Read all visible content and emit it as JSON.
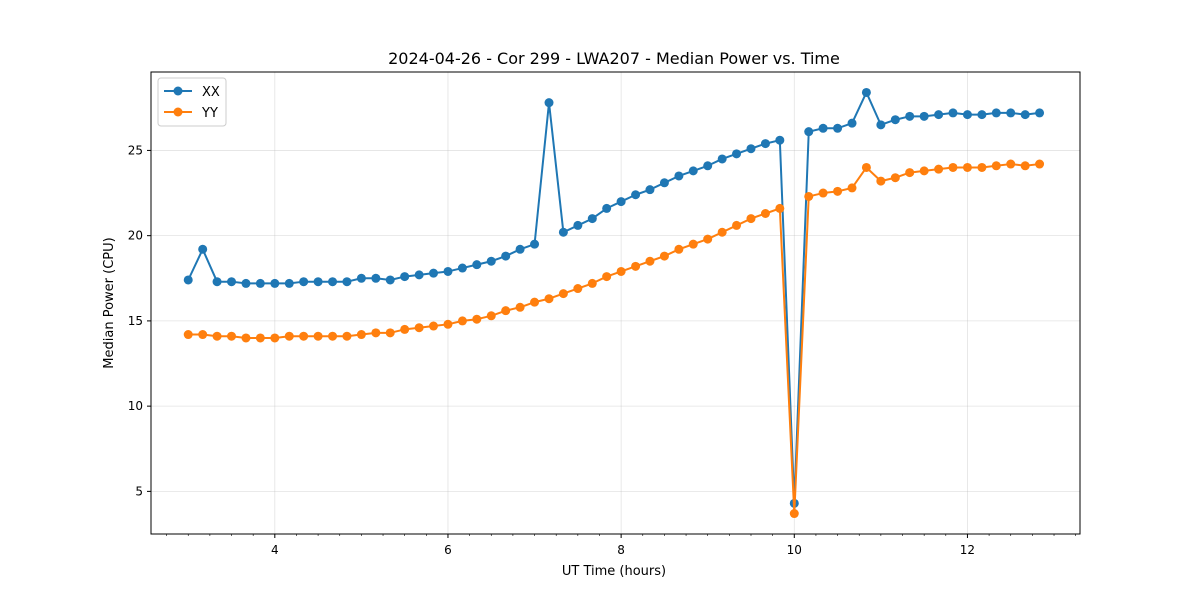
{
  "chart_data": {
    "type": "line",
    "title": "2024-04-26 - Cor 299 - LWA207 - Median Power vs. Time",
    "xlabel": "UT Time (hours)",
    "ylabel": "Median Power (CPU)",
    "xlim": [
      2.57,
      13.3
    ],
    "ylim": [
      2.5,
      29.6
    ],
    "xticks": [
      4,
      6,
      8,
      10,
      12
    ],
    "yticks": [
      5,
      10,
      15,
      20,
      25
    ],
    "x_minor_step": 0.25,
    "grid": true,
    "legend_position": "top-left",
    "x": [
      3.0,
      3.167,
      3.333,
      3.5,
      3.667,
      3.833,
      4.0,
      4.167,
      4.333,
      4.5,
      4.667,
      4.833,
      5.0,
      5.167,
      5.333,
      5.5,
      5.667,
      5.833,
      6.0,
      6.167,
      6.333,
      6.5,
      6.667,
      6.833,
      7.0,
      7.167,
      7.333,
      7.5,
      7.667,
      7.833,
      8.0,
      8.167,
      8.333,
      8.5,
      8.667,
      8.833,
      9.0,
      9.167,
      9.333,
      9.5,
      9.667,
      9.833,
      10.0,
      10.167,
      10.333,
      10.5,
      10.667,
      10.833,
      11.0,
      11.167,
      11.333,
      11.5,
      11.667,
      11.833,
      12.0,
      12.167,
      12.333,
      12.5,
      12.667,
      12.833
    ],
    "series": [
      {
        "name": "XX",
        "color": "#1f77b4",
        "values": [
          17.4,
          19.2,
          17.3,
          17.3,
          17.2,
          17.2,
          17.2,
          17.2,
          17.3,
          17.3,
          17.3,
          17.3,
          17.5,
          17.5,
          17.4,
          17.6,
          17.7,
          17.8,
          17.9,
          18.1,
          18.3,
          18.5,
          18.8,
          19.2,
          19.5,
          27.8,
          20.2,
          20.6,
          21.0,
          21.6,
          22.0,
          22.4,
          22.7,
          23.1,
          23.5,
          23.8,
          24.1,
          24.5,
          24.8,
          25.1,
          25.4,
          25.6,
          4.3,
          26.1,
          26.3,
          26.3,
          26.6,
          28.4,
          26.5,
          26.8,
          27.0,
          27.0,
          27.1,
          27.2,
          27.1,
          27.1,
          27.2,
          27.2,
          27.1,
          27.2
        ]
      },
      {
        "name": "YY",
        "color": "#ff7f0e",
        "values": [
          14.2,
          14.2,
          14.1,
          14.1,
          14.0,
          14.0,
          14.0,
          14.1,
          14.1,
          14.1,
          14.1,
          14.1,
          14.2,
          14.3,
          14.3,
          14.5,
          14.6,
          14.7,
          14.8,
          15.0,
          15.1,
          15.3,
          15.6,
          15.8,
          16.1,
          16.3,
          16.6,
          16.9,
          17.2,
          17.6,
          17.9,
          18.2,
          18.5,
          18.8,
          19.2,
          19.5,
          19.8,
          20.2,
          20.6,
          21.0,
          21.3,
          21.6,
          3.7,
          22.3,
          22.5,
          22.6,
          22.8,
          24.0,
          23.2,
          23.4,
          23.7,
          23.8,
          23.9,
          24.0,
          24.0,
          24.0,
          24.1,
          24.2,
          24.1,
          24.2
        ]
      }
    ]
  }
}
